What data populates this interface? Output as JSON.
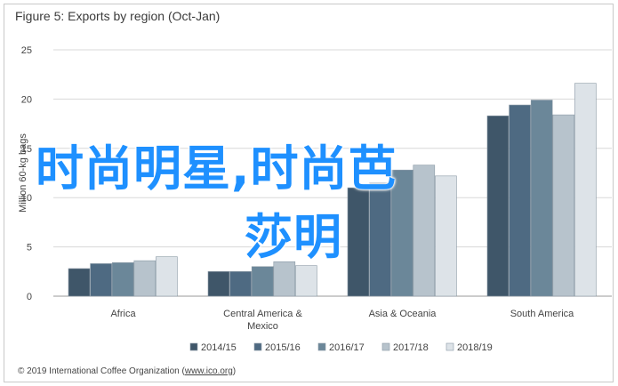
{
  "title": "Figure 5: Exports by region (Oct-Jan)",
  "footer": {
    "prefix": "© 2019 International Coffee Organization (",
    "link": "www.ico.org",
    "suffix": ")"
  },
  "overlay": {
    "line1": "时尚明星,时尚芭",
    "line2": "莎明",
    "color": "#1e90ff"
  },
  "chart_data": {
    "type": "bar",
    "title": "Figure 5: Exports by region (Oct-Jan)",
    "ylabel": "Million 60-kg bags",
    "xlabel": "",
    "ylim": [
      0,
      25
    ],
    "yticks": [
      0,
      5,
      10,
      15,
      20,
      25
    ],
    "grid": true,
    "legend_position": "bottom",
    "categories": [
      "Africa",
      "Central America & Mexico",
      "Asia & Oceania",
      "South America"
    ],
    "category_labels": [
      [
        "Africa"
      ],
      [
        "Central America &",
        "Mexico"
      ],
      [
        "Asia & Oceania"
      ],
      [
        "South America"
      ]
    ],
    "series": [
      {
        "name": "2014/15",
        "color": "#3f5669",
        "values": [
          2.8,
          2.5,
          11.0,
          18.3
        ]
      },
      {
        "name": "2015/16",
        "color": "#4e6a82",
        "values": [
          3.3,
          2.5,
          11.5,
          19.4
        ]
      },
      {
        "name": "2016/17",
        "color": "#6b8799",
        "values": [
          3.4,
          3.0,
          12.8,
          19.9
        ]
      },
      {
        "name": "2017/18",
        "color": "#b7c3cc",
        "values": [
          3.6,
          3.5,
          13.3,
          18.4
        ]
      },
      {
        "name": "2018/19",
        "color": "#dde3e8",
        "values": [
          4.0,
          3.1,
          12.2,
          21.6
        ]
      }
    ]
  }
}
